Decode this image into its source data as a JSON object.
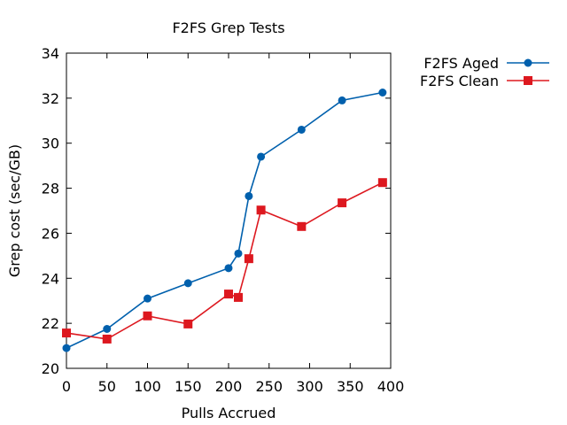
{
  "chart_data": {
    "type": "line",
    "title": "F2FS Grep Tests",
    "xlabel": "Pulls Accrued",
    "ylabel": "Grep cost (sec/GB)",
    "xlim": [
      0,
      400
    ],
    "ylim": [
      20,
      34
    ],
    "x_ticks": [
      0,
      50,
      100,
      150,
      200,
      250,
      300,
      350,
      400
    ],
    "y_ticks": [
      20,
      22,
      24,
      26,
      28,
      30,
      32,
      34
    ],
    "grid": false,
    "legend": "outside-top-right",
    "series": [
      {
        "name": "F2FS Aged",
        "color": "#0060ad",
        "marker": "circle",
        "x": [
          0,
          50,
          100,
          150,
          200,
          212,
          225,
          240,
          290,
          340,
          390
        ],
        "y": [
          20.9,
          21.75,
          23.1,
          23.78,
          24.45,
          25.1,
          27.65,
          29.4,
          30.6,
          31.9,
          32.25
        ]
      },
      {
        "name": "F2FS Clean",
        "color": "#dd181f",
        "marker": "square",
        "x": [
          0,
          50,
          100,
          150,
          200,
          212,
          225,
          240,
          290,
          340,
          390
        ],
        "y": [
          21.57,
          21.3,
          22.33,
          21.97,
          23.3,
          23.15,
          24.87,
          27.03,
          26.3,
          27.35,
          28.25
        ]
      }
    ]
  }
}
